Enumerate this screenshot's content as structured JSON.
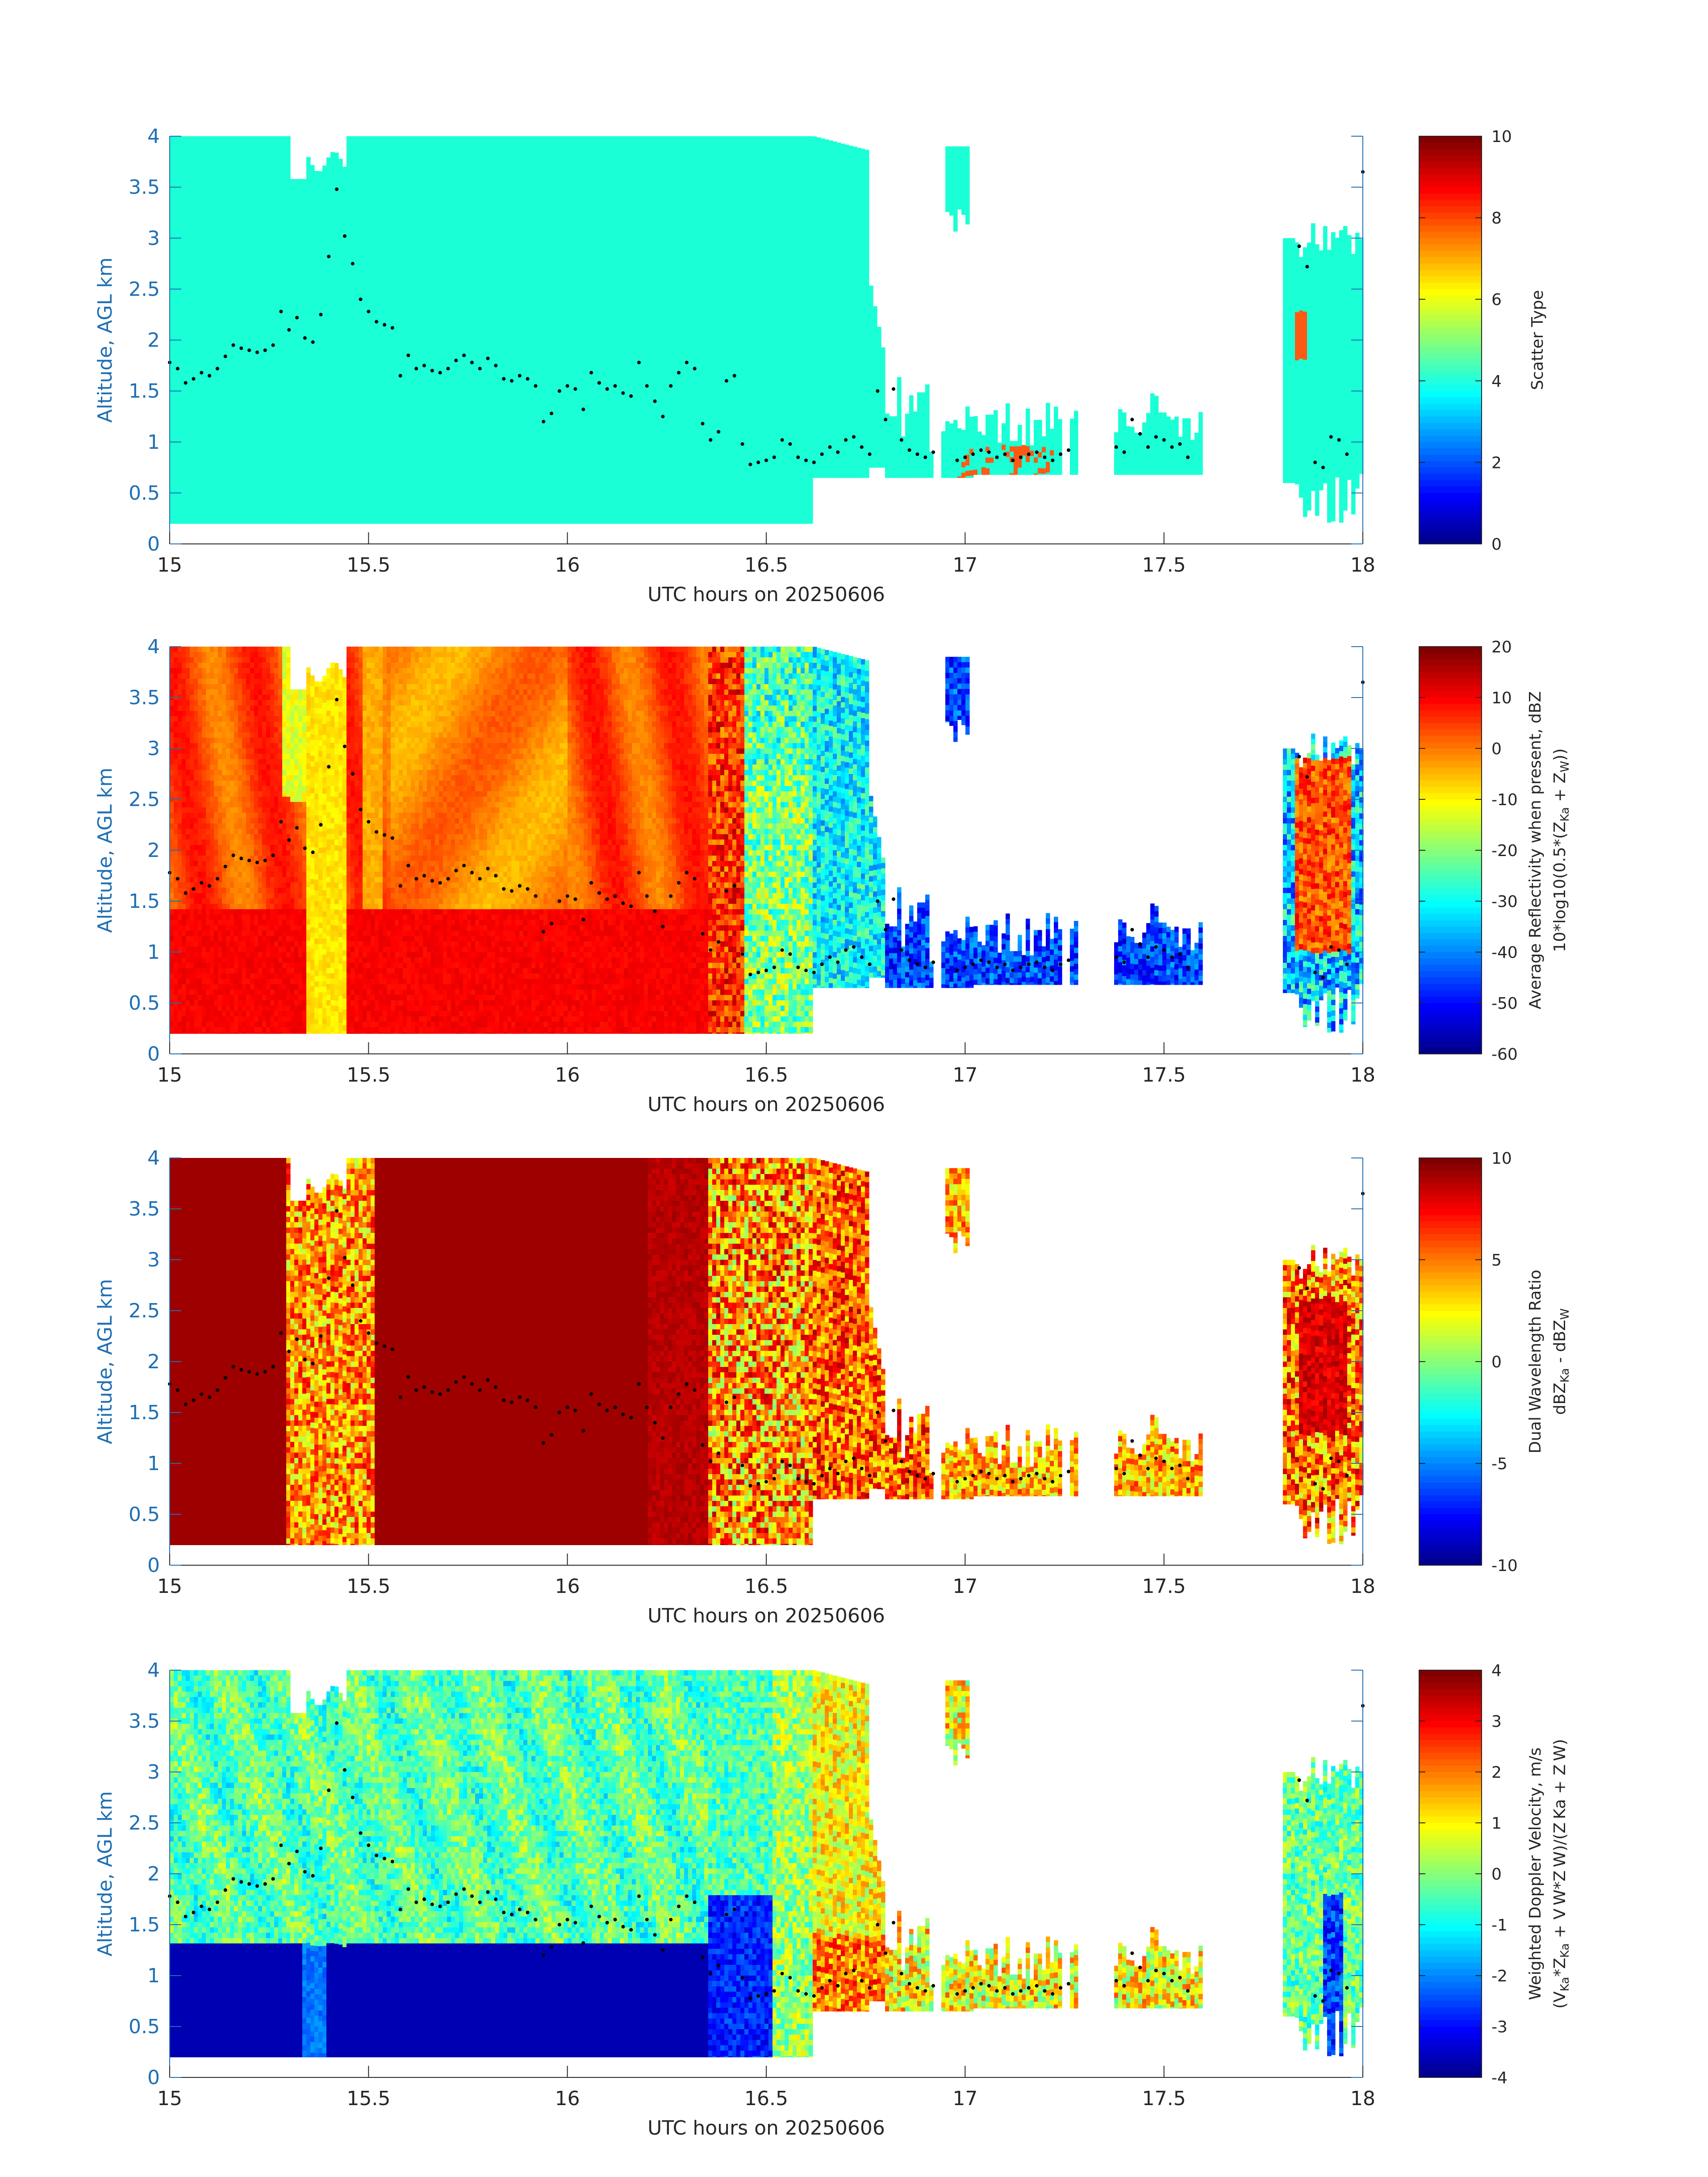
{
  "figure": {
    "x_axis_label": "UTC hours on 20250606",
    "y_axis_label": "Altitude, AGL km",
    "x_ticks": [
      "15",
      "15.5",
      "16",
      "16.5",
      "17",
      "17.5",
      "18"
    ],
    "y_ticks": [
      "0",
      "0.5",
      "1",
      "1.5",
      "2",
      "2.5",
      "3",
      "3.5",
      "4"
    ]
  },
  "colors": {
    "jet_dark_blue": "#00008f",
    "jet_blue": "#0040ff",
    "jet_cyan": "#00ffff",
    "jet_green_yellow": "#80ff80",
    "jet_yellow": "#ffff00",
    "jet_orange": "#ff8000",
    "jet_red": "#ff0000",
    "jet_dark_red": "#800000",
    "scatter_cyan": "#1affd5",
    "scatter_red": "#ff5a14",
    "axis_blue": "#1f6fb4",
    "text_gray": "#262626"
  },
  "chart_data": [
    {
      "type": "heatmap",
      "panel": "scatter-type",
      "colorbar": {
        "label": "Scatter Type",
        "label_line2": "",
        "ticks": [
          "10",
          "8",
          "6",
          "4",
          "2",
          "0"
        ],
        "range": [
          0,
          10
        ]
      },
      "xlim": [
        15,
        18
      ],
      "ylim": [
        0,
        4
      ],
      "xlabel": "UTC hours on 20250606",
      "ylabel": "Altitude, AGL km",
      "description_values": {
        "dominant_class": 4.5,
        "secondary_class": 8.5
      }
    },
    {
      "type": "heatmap",
      "panel": "reflectivity",
      "colorbar": {
        "label": "Average Reflectivity when present, dBZ",
        "label_line2": "10*log10(0.5*(Z",
        "label_line2_sub": "Ka",
        "label_line2_mid": " + Z",
        "label_line2_sub2": "W",
        "label_line2_end": "))",
        "ticks": [
          "20",
          "10",
          "0",
          "-10",
          "-20",
          "-30",
          "-40",
          "-50",
          "-60"
        ],
        "range": [
          -60,
          20
        ]
      },
      "xlim": [
        15,
        18
      ],
      "ylim": [
        0,
        4
      ],
      "xlabel": "UTC hours on 20250606",
      "ylabel": "Altitude, AGL km"
    },
    {
      "type": "heatmap",
      "panel": "dual-wavelength-ratio",
      "colorbar": {
        "label": "Dual Wavelength Ratio",
        "label_line2": "dBZ",
        "label_line2_sub": "Ka",
        "label_line2_mid": " - dBZ",
        "label_line2_sub2": "W",
        "label_line2_end": "",
        "ticks": [
          "10",
          "5",
          "0",
          "-5",
          "-10"
        ],
        "range": [
          -10,
          10
        ]
      },
      "xlim": [
        15,
        18
      ],
      "ylim": [
        0,
        4
      ],
      "xlabel": "UTC hours on 20250606",
      "ylabel": "Altitude, AGL km"
    },
    {
      "type": "heatmap",
      "panel": "doppler-velocity",
      "colorbar": {
        "label": "Weighted Doppler Velocity, m/s",
        "label_line2": "(V",
        "label_line2_sub": "Ka",
        "label_line2_mid": "*Z",
        "label_line2_sub2": "Ka",
        "label_line2_end": " + V W*Z W)/(Z Ka + Z W)",
        "ticks": [
          "4",
          "3",
          "2",
          "1",
          "0",
          "-1",
          "-2",
          "-3",
          "-4"
        ],
        "range": [
          -4,
          4
        ]
      },
      "xlim": [
        15,
        18
      ],
      "ylim": [
        0,
        4
      ],
      "xlabel": "UTC hours on 20250606",
      "ylabel": "Altitude, AGL km"
    }
  ],
  "cloud_base_dots": {
    "x": [
      15.0,
      15.02,
      15.04,
      15.06,
      15.08,
      15.1,
      15.12,
      15.14,
      15.16,
      15.18,
      15.2,
      15.22,
      15.24,
      15.26,
      15.28,
      15.3,
      15.32,
      15.34,
      15.36,
      15.38,
      15.4,
      15.42,
      15.44,
      15.46,
      15.48,
      15.5,
      15.52,
      15.54,
      15.56,
      15.58,
      15.6,
      15.62,
      15.64,
      15.66,
      15.68,
      15.7,
      15.72,
      15.74,
      15.76,
      15.78,
      15.8,
      15.82,
      15.84,
      15.86,
      15.88,
      15.9,
      15.92,
      15.94,
      15.96,
      15.98,
      16.0,
      16.02,
      16.04,
      16.06,
      16.08,
      16.1,
      16.12,
      16.14,
      16.16,
      16.18,
      16.2,
      16.22,
      16.24,
      16.26,
      16.28,
      16.3,
      16.32,
      16.34,
      16.36,
      16.38,
      16.4,
      16.42,
      16.44,
      16.46,
      16.48,
      16.5,
      16.52,
      16.54,
      16.56,
      16.58,
      16.6,
      16.62,
      16.64,
      16.66,
      16.68,
      16.7,
      16.72,
      16.74,
      16.76,
      16.78,
      16.8,
      16.82,
      16.84,
      16.86,
      16.88,
      16.9,
      16.92,
      16.98,
      17.0,
      17.02,
      17.04,
      17.06,
      17.08,
      17.1,
      17.12,
      17.14,
      17.16,
      17.18,
      17.2,
      17.22,
      17.24,
      17.26,
      17.38,
      17.4,
      17.42,
      17.44,
      17.46,
      17.48,
      17.5,
      17.52,
      17.54,
      17.56,
      17.84,
      17.86,
      17.88,
      17.9,
      17.92,
      17.94,
      17.96,
      18.0
    ],
    "y": [
      1.78,
      1.72,
      1.58,
      1.62,
      1.68,
      1.65,
      1.72,
      1.84,
      1.95,
      1.92,
      1.9,
      1.88,
      1.9,
      1.95,
      2.28,
      2.1,
      2.22,
      2.02,
      1.98,
      2.25,
      2.82,
      3.48,
      3.02,
      2.75,
      2.4,
      2.28,
      2.18,
      2.15,
      2.12,
      1.65,
      1.85,
      1.72,
      1.75,
      1.7,
      1.68,
      1.72,
      1.8,
      1.85,
      1.78,
      1.72,
      1.82,
      1.75,
      1.62,
      1.6,
      1.65,
      1.62,
      1.55,
      1.2,
      1.28,
      1.5,
      1.55,
      1.52,
      1.32,
      1.68,
      1.58,
      1.52,
      1.55,
      1.48,
      1.45,
      1.78,
      1.55,
      1.4,
      1.25,
      1.55,
      1.68,
      1.78,
      1.72,
      1.18,
      1.02,
      1.1,
      1.6,
      1.65,
      0.98,
      0.78,
      0.8,
      0.82,
      0.85,
      1.02,
      0.98,
      0.85,
      0.82,
      0.8,
      0.88,
      0.95,
      0.9,
      1.02,
      1.05,
      0.95,
      0.88,
      1.5,
      1.22,
      1.52,
      1.02,
      0.92,
      0.88,
      0.85,
      0.9,
      0.82,
      0.85,
      0.88,
      0.92,
      0.9,
      0.85,
      0.88,
      0.82,
      0.85,
      0.88,
      0.9,
      0.85,
      0.82,
      0.88,
      0.92,
      0.95,
      0.9,
      1.22,
      1.08,
      0.95,
      1.05,
      1.02,
      0.95,
      0.98,
      0.85,
      2.92,
      2.72,
      0.8,
      0.75,
      1.05,
      1.02,
      0.88,
      3.65
    ]
  }
}
